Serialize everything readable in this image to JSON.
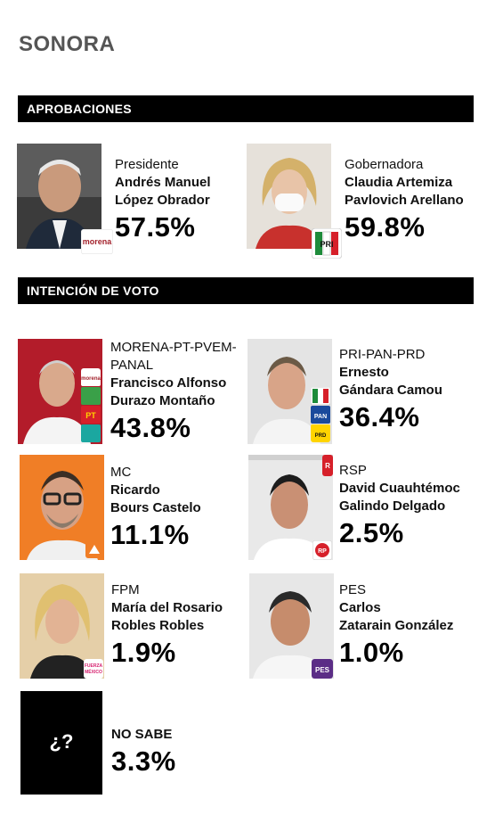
{
  "state": "SONORA",
  "sections": {
    "approvals": "APROBACIONES",
    "vote": "INTENCIÓN DE VOTO"
  },
  "approvals": [
    {
      "role": "Presidente",
      "name_line1": "Andrés Manuel",
      "name_line2": "López Obrador",
      "value": "57.5%",
      "party_icon": "morena-logo-icon"
    },
    {
      "role": "Gobernadora",
      "name_line1": "Claudia Artemiza",
      "name_line2": "Pavlovich Arellano",
      "value": "59.8%",
      "party_icon": "pri-logo-icon"
    }
  ],
  "candidates": [
    {
      "party_line1": "MORENA-PT-PVEM-",
      "party_line2": "PANAL",
      "name_line1": "Francisco Alfonso",
      "name_line2": "Durazo Montaño",
      "value": "43.8%",
      "party_icon": "morena-pt-pvem-panal-logos-icon"
    },
    {
      "party_line1": "PRI-PAN-PRD",
      "name_line1": "Ernesto",
      "name_line2": "Gándara Camou",
      "value": "36.4%",
      "party_icon": "pri-pan-prd-logos-icon"
    },
    {
      "party_line1": "MC",
      "name_line1": "Ricardo",
      "name_line2": "Bours Castelo",
      "value": "11.1%",
      "party_icon": "mc-logo-icon"
    },
    {
      "party_line1": "RSP",
      "name_line1": "David Cuauhtémoc",
      "name_line2": "Galindo Delgado",
      "value": "2.5%",
      "party_icon": "rsp-logo-icon"
    },
    {
      "party_line1": "FPM",
      "name_line1": "María del Rosario",
      "name_line2": "Robles Robles",
      "value": "1.9%",
      "party_icon": "fpm-logo-icon"
    },
    {
      "party_line1": "PES",
      "name_line1": "Carlos",
      "name_line2": "Zatarain González",
      "value": "1.0%",
      "party_icon": "pes-logo-icon"
    }
  ],
  "unknown": {
    "symbol": "¿?",
    "label": "NO SABE",
    "value": "3.3%"
  },
  "chart_data": {
    "type": "table",
    "title": "SONORA",
    "approval": {
      "header": "APROBACIONES",
      "categories": [
        "Presidente Andrés Manuel López Obrador",
        "Gobernadora Claudia Artemiza Pavlovich Arellano"
      ],
      "values": [
        57.5,
        59.8
      ]
    },
    "vote_intention": {
      "header": "INTENCIÓN DE VOTO",
      "categories": [
        "MORENA-PT-PVEM-PANAL Francisco Alfonso Durazo Montaño",
        "PRI-PAN-PRD Ernesto Gándara Camou",
        "MC Ricardo Bours Castelo",
        "RSP David Cuauhtémoc Galindo Delgado",
        "FPM María del Rosario Robles Robles",
        "PES Carlos Zatarain González",
        "NO SABE"
      ],
      "values": [
        43.8,
        36.4,
        11.1,
        2.5,
        1.9,
        1.0,
        3.3
      ]
    }
  }
}
